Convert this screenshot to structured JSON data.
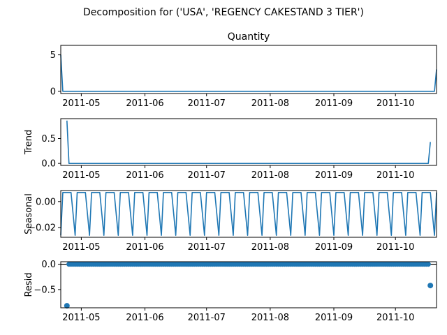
{
  "figure": {
    "suptitle": "Decomposition for ('USA', 'REGENCY CAKESTAND 3 TIER')"
  },
  "chart_data": [
    {
      "type": "line",
      "panel": "observed",
      "title": "Quantity",
      "ylabel": "",
      "ylim": [
        -0.3,
        6.3
      ],
      "yticks": [
        0,
        5
      ],
      "x_start": "2011-04-21",
      "x_end": "2011-10-21",
      "xticks": [
        "2011-05",
        "2011-06",
        "2011-07",
        "2011-08",
        "2011-09",
        "2011-10"
      ],
      "series": [
        {
          "x": [
            "2011-04-21",
            "2011-04-22",
            "2011-10-20",
            "2011-10-21"
          ],
          "y": [
            5,
            0,
            0,
            3
          ]
        }
      ],
      "color": "#1f77b4"
    },
    {
      "type": "line",
      "panel": "trend",
      "title": "",
      "ylabel": "Trend",
      "ylim": [
        -0.04,
        0.9
      ],
      "yticks": [
        0.0,
        0.5
      ],
      "x_start": "2011-04-21",
      "x_end": "2011-10-21",
      "xticks": [
        "2011-05",
        "2011-06",
        "2011-07",
        "2011-08",
        "2011-09",
        "2011-10"
      ],
      "series": [
        {
          "x": [
            "2011-04-24",
            "2011-04-25",
            "2011-10-17",
            "2011-10-18"
          ],
          "y": [
            0.86,
            0.0,
            0.0,
            0.43
          ]
        }
      ],
      "color": "#1f77b4"
    },
    {
      "type": "line",
      "panel": "seasonal",
      "title": "",
      "ylabel": "Seasonal",
      "ylim": [
        -0.0275,
        0.0085
      ],
      "yticks": [
        0.0,
        -0.02
      ],
      "yticklabels": [
        "0.00",
        "−0.02"
      ],
      "x_start": "2011-04-21",
      "x_end": "2011-10-21",
      "xticks": [
        "2011-05",
        "2011-06",
        "2011-07",
        "2011-08",
        "2011-09",
        "2011-10"
      ],
      "weekly_pattern": [
        -0.026,
        0.007,
        0.007,
        0.007,
        0.007,
        0.007,
        -0.0095
      ],
      "color": "#1f77b4"
    },
    {
      "type": "scatter",
      "panel": "resid",
      "title": "",
      "ylabel": "Resid",
      "ylim": [
        -0.86,
        0.05
      ],
      "yticks": [
        0.0,
        -0.5
      ],
      "yticklabels": [
        "0.0",
        "−0.5"
      ],
      "x_start": "2011-04-21",
      "x_end": "2011-10-21",
      "xticks": [
        "2011-05",
        "2011-06",
        "2011-07",
        "2011-08",
        "2011-09",
        "2011-10"
      ],
      "points": [
        {
          "x": "2011-04-24",
          "y": -0.82
        },
        {
          "x": "2011-10-18",
          "y": -0.42
        }
      ],
      "zero_range": [
        "2011-04-25",
        "2011-10-17"
      ],
      "color": "#1f77b4"
    }
  ]
}
